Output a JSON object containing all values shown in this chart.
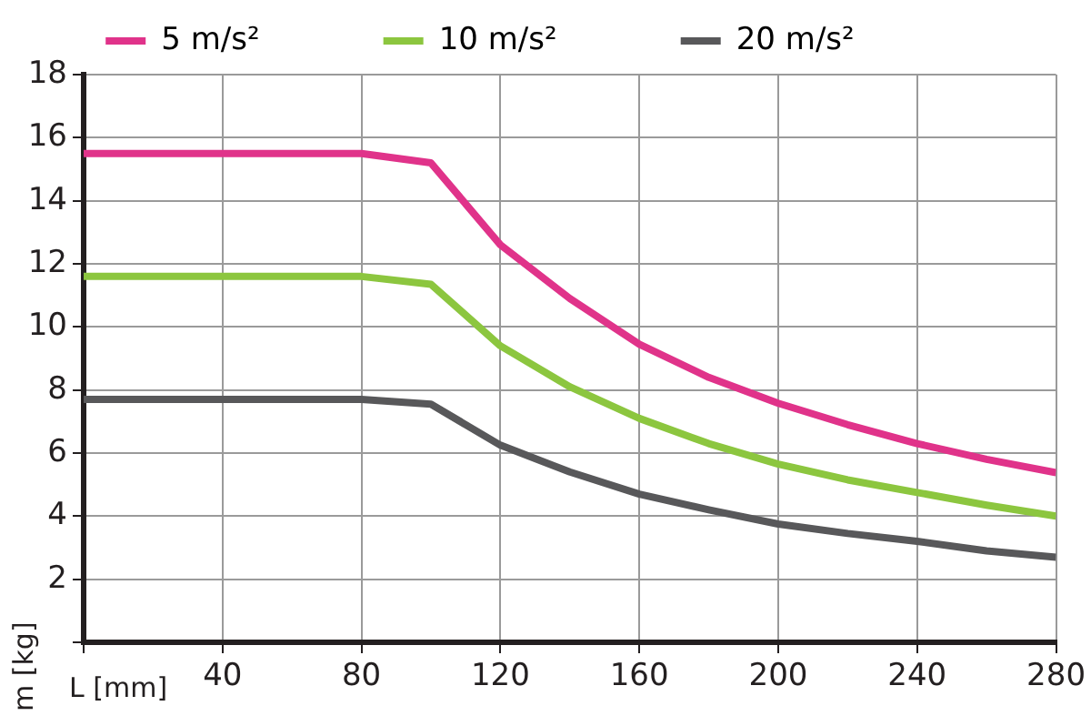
{
  "chart_data": {
    "type": "line",
    "xlabel": "L [mm]",
    "ylabel": "m [kg]",
    "x": [
      0,
      80,
      100,
      120,
      140,
      160,
      180,
      200,
      220,
      240,
      260,
      280
    ],
    "series": [
      {
        "name": "5 m/s²",
        "color": "#e0338a",
        "values": [
          15.5,
          15.5,
          15.2,
          12.6,
          10.9,
          9.45,
          8.4,
          7.58,
          6.9,
          6.3,
          5.8,
          5.38
        ]
      },
      {
        "name": "10 m/s²",
        "color": "#8cc63f",
        "values": [
          11.6,
          11.6,
          11.35,
          9.4,
          8.1,
          7.1,
          6.3,
          5.65,
          5.15,
          4.75,
          4.35,
          4.0
        ]
      },
      {
        "name": "20 m/s²",
        "color": "#58585a",
        "values": [
          7.7,
          7.7,
          7.55,
          6.25,
          5.4,
          4.7,
          4.2,
          3.75,
          3.45,
          3.2,
          2.9,
          2.7
        ]
      }
    ],
    "xlim": [
      0,
      280
    ],
    "xticks": [
      {
        "value": 0,
        "label": null
      },
      40,
      80,
      120,
      160,
      200,
      240,
      280
    ],
    "ylim": [
      0,
      18
    ],
    "yticks": [
      {
        "value": 0,
        "label": null
      },
      2,
      4,
      6,
      8,
      10,
      12,
      14,
      16,
      18
    ],
    "grid": true,
    "legend": "top",
    "marker": "none",
    "line_style": "solid"
  }
}
